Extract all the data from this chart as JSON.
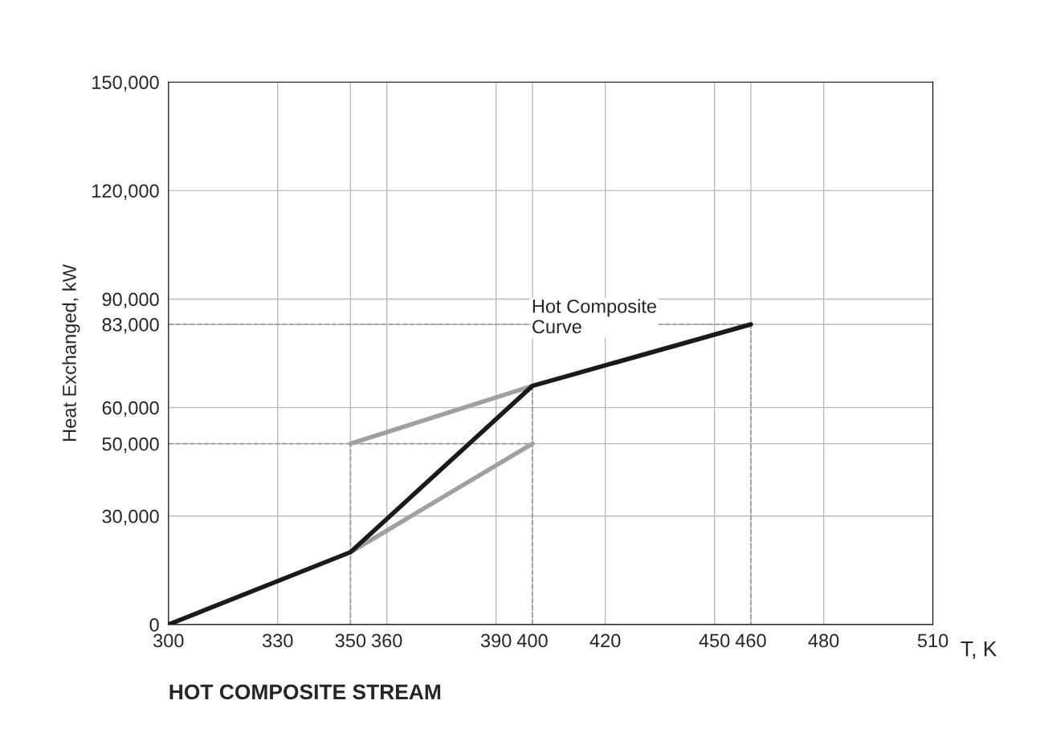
{
  "chart_data": {
    "type": "line",
    "title": "HOT COMPOSITE STREAM",
    "xlabel": "T, K",
    "ylabel": "Heat Exchanged, kW",
    "annotations": [
      "Hot Composite\nCurve"
    ],
    "series": [
      {
        "x": [
          300,
          400
        ],
        "values": [
          50000,
          50000
        ],
        "color": "#999999",
        "line_style": "dashed"
      },
      {
        "x": [
          350,
          350
        ],
        "values": [
          0,
          50000
        ],
        "color": "#999999",
        "line_style": "dashed"
      },
      {
        "x": [
          400,
          400
        ],
        "values": [
          0,
          66000
        ],
        "color": "#999999",
        "line_style": "dashed"
      },
      {
        "x": [
          300,
          460,
          460
        ],
        "values": [
          83000,
          83000,
          0
        ],
        "color": "#999999",
        "line_style": "dashed"
      },
      {
        "x": [
          400,
          350
        ],
        "values": [
          66000,
          50000
        ],
        "color": "#a0a0a0",
        "line_style": "solid"
      },
      {
        "x": [
          350,
          400
        ],
        "values": [
          20000,
          50000
        ],
        "color": "#a0a0a0",
        "line_style": "solid"
      },
      {
        "x": [
          300,
          350,
          400,
          460
        ],
        "values": [
          0,
          20000,
          66000,
          83000
        ],
        "color": "#1a1a1a",
        "line_style": "solid"
      }
    ],
    "xlim": [
      300,
      510
    ],
    "ylim": [
      0,
      150000
    ],
    "xticks": [
      300,
      330,
      350,
      360,
      390,
      400,
      420,
      450,
      460,
      480,
      510
    ],
    "yticks": [
      {
        "value": 0,
        "label": "0"
      },
      {
        "value": 30000,
        "label": "30,000"
      },
      {
        "value": 50000,
        "label": "50,000"
      },
      {
        "value": 60000,
        "label": "60,000"
      },
      {
        "value": 83000,
        "label": "83,000"
      },
      {
        "value": 90000,
        "label": "90,000"
      },
      {
        "value": 120000,
        "label": "120,000"
      },
      {
        "value": 150000,
        "label": "150,000"
      }
    ],
    "grid": true,
    "marker": "none"
  }
}
